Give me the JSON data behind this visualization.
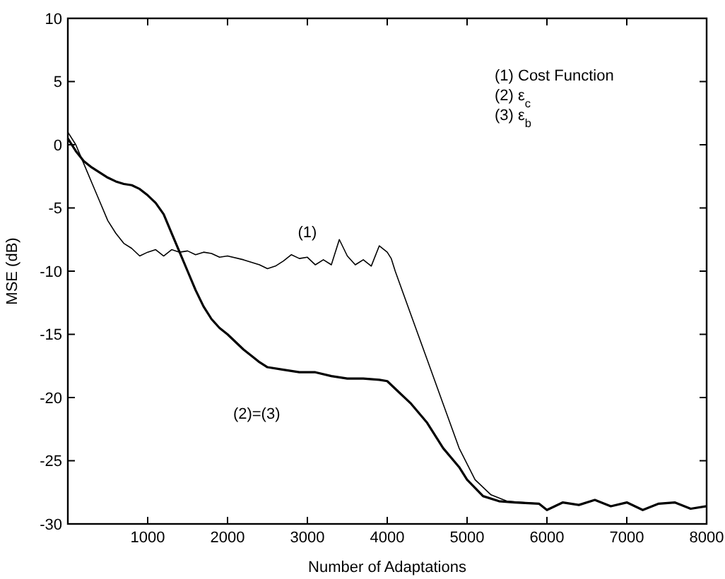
{
  "chart_data": {
    "type": "line",
    "xlabel": "Number of Adaptations",
    "ylabel": "MSE (dB)",
    "xlim": [
      0,
      8000
    ],
    "xticks": [
      1000,
      2000,
      3000,
      4000,
      5000,
      6000,
      7000,
      8000
    ],
    "ylim": [
      -30,
      10
    ],
    "yticks": [
      -30,
      -25,
      -20,
      -15,
      -10,
      -5,
      0,
      5,
      10
    ],
    "grid": false,
    "marker": "none",
    "line_style": "solid",
    "series": [
      {
        "name": "(1)",
        "color": "#000000",
        "x": [
          0,
          100,
          200,
          300,
          400,
          500,
          600,
          700,
          800,
          900,
          1000,
          1100,
          1200,
          1300,
          1400,
          1500,
          1600,
          1700,
          1800,
          1900,
          2000,
          2200,
          2400,
          2500,
          2600,
          2700,
          2800,
          2900,
          3000,
          3100,
          3200,
          3300,
          3400,
          3500,
          3600,
          3700,
          3800,
          3900,
          4000,
          4050,
          4100,
          4300,
          4500,
          4700,
          4900,
          5100,
          5300,
          5500,
          5700,
          5900,
          6000,
          6200,
          6400,
          6600,
          6800,
          7000,
          7200,
          7400,
          7600,
          7800,
          8000
        ],
        "values": [
          1,
          0,
          -1.5,
          -3,
          -4.5,
          -6,
          -7,
          -7.8,
          -8.2,
          -8.8,
          -8.5,
          -8.3,
          -8.8,
          -8.3,
          -8.5,
          -8.4,
          -8.7,
          -8.5,
          -8.6,
          -8.9,
          -8.8,
          -9.1,
          -9.5,
          -9.8,
          -9.6,
          -9.2,
          -8.7,
          -9,
          -8.9,
          -9.5,
          -9.1,
          -9.5,
          -7.5,
          -8.8,
          -9.5,
          -9.1,
          -9.6,
          -8,
          -8.5,
          -9,
          -10,
          -13.5,
          -17,
          -20.5,
          -24,
          -26.5,
          -27.7,
          -28.2,
          -28.3,
          -28.4,
          -28.9,
          -28.3,
          -28.5,
          -28.1,
          -28.6,
          -28.3,
          -28.9,
          -28.4,
          -28.3,
          -28.8,
          -28.6
        ]
      },
      {
        "name": "(2)=(3)",
        "color": "#000000",
        "x": [
          0,
          100,
          200,
          300,
          400,
          500,
          600,
          700,
          800,
          900,
          1000,
          1100,
          1200,
          1300,
          1400,
          1500,
          1600,
          1700,
          1800,
          1900,
          2000,
          2200,
          2400,
          2500,
          2700,
          2900,
          3100,
          3300,
          3500,
          3700,
          3900,
          4000,
          4100,
          4300,
          4500,
          4700,
          4900,
          5000,
          5200,
          5400,
          5600,
          5900,
          6000,
          6200,
          6400,
          6600,
          6800,
          7000,
          7200,
          7400,
          7600,
          7800,
          8000
        ],
        "values": [
          0.5,
          -0.5,
          -1.3,
          -1.8,
          -2.2,
          -2.6,
          -2.9,
          -3.1,
          -3.2,
          -3.5,
          -4,
          -4.6,
          -5.5,
          -7,
          -8.5,
          -10,
          -11.5,
          -12.8,
          -13.8,
          -14.5,
          -15,
          -16.2,
          -17.2,
          -17.6,
          -17.8,
          -18,
          -18,
          -18.3,
          -18.5,
          -18.5,
          -18.6,
          -18.7,
          -19.3,
          -20.5,
          -22,
          -24,
          -25.5,
          -26.5,
          -27.8,
          -28.2,
          -28.3,
          -28.4,
          -28.9,
          -28.3,
          -28.5,
          -28.1,
          -28.6,
          -28.3,
          -28.9,
          -28.4,
          -28.3,
          -28.8,
          -28.6
        ]
      }
    ],
    "annotations": [
      "(1) Cost Function",
      "(2) ε$_{c}$",
      "(3) ε$_{b}$"
    ]
  }
}
